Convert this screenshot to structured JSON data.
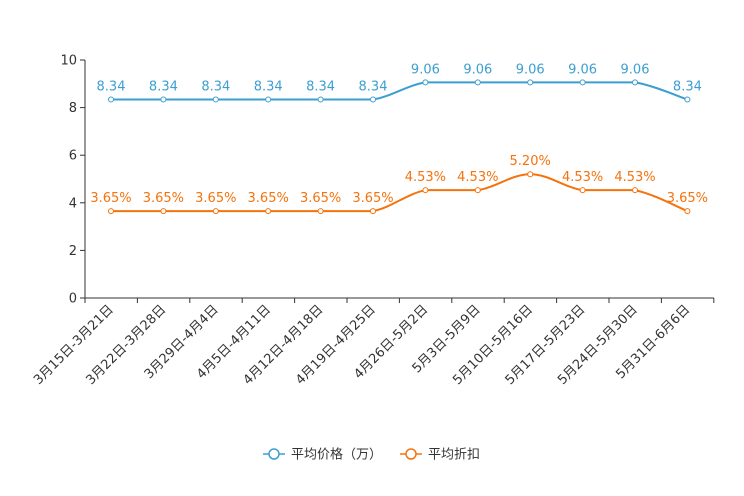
{
  "chart_data": {
    "type": "line",
    "title": "",
    "xlabel": "",
    "ylabel": "",
    "ylim": [
      0,
      10
    ],
    "yticks": [
      0,
      2,
      4,
      6,
      8,
      10
    ],
    "grid": false,
    "legend_position": "bottom-center",
    "categories": [
      "3月15日-3月21日",
      "3月22日-3月28日",
      "3月29日-4月4日",
      "4月5日-4月11日",
      "4月12日-4月18日",
      "4月19日-4月25日",
      "4月26日-5月2日",
      "5月3日-5月9日",
      "5月10日-5月16日",
      "5月17日-5月23日",
      "5月24日-5月30日",
      "5月31日-6月6日"
    ],
    "series": [
      {
        "name": "平均价格（万）",
        "color": "#3c9fd0",
        "values": [
          8.34,
          8.34,
          8.34,
          8.34,
          8.34,
          8.34,
          9.06,
          9.06,
          9.06,
          9.06,
          9.06,
          8.34
        ],
        "labels": [
          "8.34",
          "8.34",
          "8.34",
          "8.34",
          "8.34",
          "8.34",
          "9.06",
          "9.06",
          "9.06",
          "9.06",
          "9.06",
          "8.34"
        ]
      },
      {
        "name": "平均折扣",
        "color": "#f5730d",
        "values": [
          3.65,
          3.65,
          3.65,
          3.65,
          3.65,
          3.65,
          4.53,
          4.53,
          5.2,
          4.53,
          4.53,
          3.65
        ],
        "labels": [
          "3.65%",
          "3.65%",
          "3.65%",
          "3.65%",
          "3.65%",
          "3.65%",
          "4.53%",
          "4.53%",
          "5.20%",
          "4.53%",
          "4.53%",
          "3.65%"
        ]
      }
    ]
  }
}
